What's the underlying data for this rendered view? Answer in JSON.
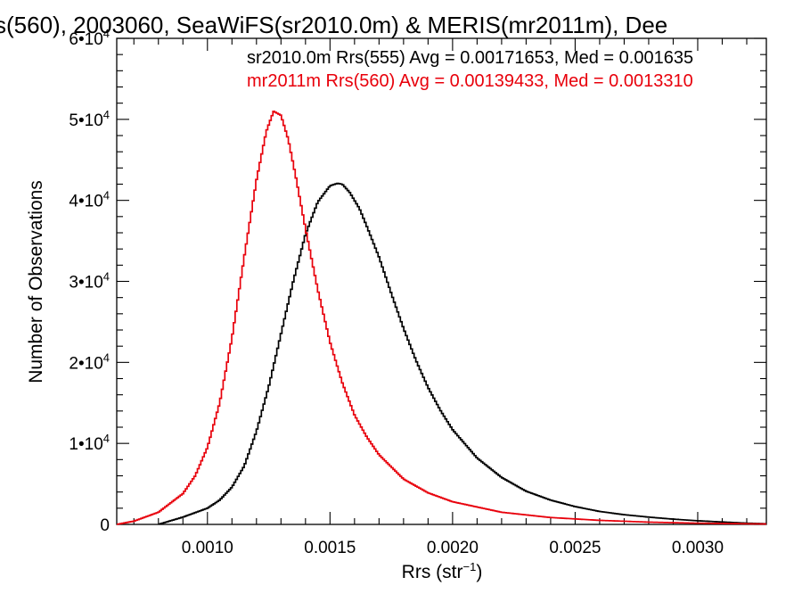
{
  "chart_data": {
    "type": "line",
    "title": "s(560), 2003060, SeaWiFS(sr2010.0m) & MERIS(mr2011m), Dee",
    "xlabel": "Rrs (str",
    "xlabel_sup": "−1",
    "xlabel_end": ")",
    "ylabel": "Number of Observations",
    "xlim": [
      0.00063,
      0.00328
    ],
    "ylim": [
      0,
      60000
    ],
    "x_ticks": [
      {
        "value": 0.001,
        "label": "0.0010"
      },
      {
        "value": 0.0015,
        "label": "0.0015"
      },
      {
        "value": 0.002,
        "label": "0.0020"
      },
      {
        "value": 0.0025,
        "label": "0.0025"
      },
      {
        "value": 0.003,
        "label": "0.0030"
      }
    ],
    "y_ticks": [
      {
        "value": 0,
        "label": "0",
        "sup": ""
      },
      {
        "value": 10000,
        "label": "1•10",
        "sup": "4"
      },
      {
        "value": 20000,
        "label": "2•10",
        "sup": "4"
      },
      {
        "value": 30000,
        "label": "3•10",
        "sup": "4"
      },
      {
        "value": 40000,
        "label": "4•10",
        "sup": "4"
      },
      {
        "value": 50000,
        "label": "5•10",
        "sup": "4"
      },
      {
        "value": 60000,
        "label": "6•10",
        "sup": "4"
      }
    ],
    "series": [
      {
        "legend": "sr2010.0m Rrs(555) Avg = 0.00171653, Med = 0.001635",
        "color": "#000000",
        "points": [
          [
            0.0008,
            0
          ],
          [
            0.0009,
            900
          ],
          [
            0.001,
            2000
          ],
          [
            0.00105,
            3000
          ],
          [
            0.0011,
            4600
          ],
          [
            0.00115,
            7200
          ],
          [
            0.0012,
            11500
          ],
          [
            0.00125,
            17000
          ],
          [
            0.0013,
            23500
          ],
          [
            0.00135,
            30000
          ],
          [
            0.0014,
            35800
          ],
          [
            0.00145,
            39800
          ],
          [
            0.0015,
            41800
          ],
          [
            0.00153,
            42100
          ],
          [
            0.00155,
            42000
          ],
          [
            0.00158,
            41000
          ],
          [
            0.00162,
            39000
          ],
          [
            0.00165,
            36800
          ],
          [
            0.0017,
            33000
          ],
          [
            0.00175,
            28500
          ],
          [
            0.0018,
            24200
          ],
          [
            0.00185,
            20300
          ],
          [
            0.0019,
            16900
          ],
          [
            0.00195,
            14100
          ],
          [
            0.002,
            11700
          ],
          [
            0.0021,
            8200
          ],
          [
            0.0022,
            5800
          ],
          [
            0.0023,
            4100
          ],
          [
            0.0024,
            3000
          ],
          [
            0.0025,
            2200
          ],
          [
            0.0026,
            1600
          ],
          [
            0.0027,
            1200
          ],
          [
            0.0028,
            900
          ],
          [
            0.0029,
            650
          ],
          [
            0.003,
            450
          ],
          [
            0.0031,
            300
          ],
          [
            0.0032,
            150
          ],
          [
            0.00328,
            80
          ]
        ]
      },
      {
        "legend": "mr2011m Rrs(560) Avg = 0.00139433, Med = 0.0013310",
        "color": "#e8000b",
        "points": [
          [
            0.00063,
            0
          ],
          [
            0.0007,
            400
          ],
          [
            0.0008,
            1500
          ],
          [
            0.0009,
            3800
          ],
          [
            0.00095,
            6000
          ],
          [
            0.001,
            9500
          ],
          [
            0.00105,
            15000
          ],
          [
            0.0011,
            23000
          ],
          [
            0.00115,
            33000
          ],
          [
            0.0012,
            42500
          ],
          [
            0.00124,
            48500
          ],
          [
            0.00127,
            51000
          ],
          [
            0.0013,
            50500
          ],
          [
            0.00133,
            47500
          ],
          [
            0.00136,
            43000
          ],
          [
            0.0014,
            36500
          ],
          [
            0.00145,
            29000
          ],
          [
            0.0015,
            22500
          ],
          [
            0.00155,
            17500
          ],
          [
            0.0016,
            13500
          ],
          [
            0.00165,
            10800
          ],
          [
            0.0017,
            8600
          ],
          [
            0.0018,
            5600
          ],
          [
            0.0019,
            3900
          ],
          [
            0.002,
            2800
          ],
          [
            0.0022,
            1500
          ],
          [
            0.0024,
            850
          ],
          [
            0.0026,
            500
          ],
          [
            0.0028,
            280
          ],
          [
            0.003,
            150
          ],
          [
            0.00328,
            50
          ]
        ]
      }
    ],
    "grid": false,
    "legend_position": "top-right"
  }
}
